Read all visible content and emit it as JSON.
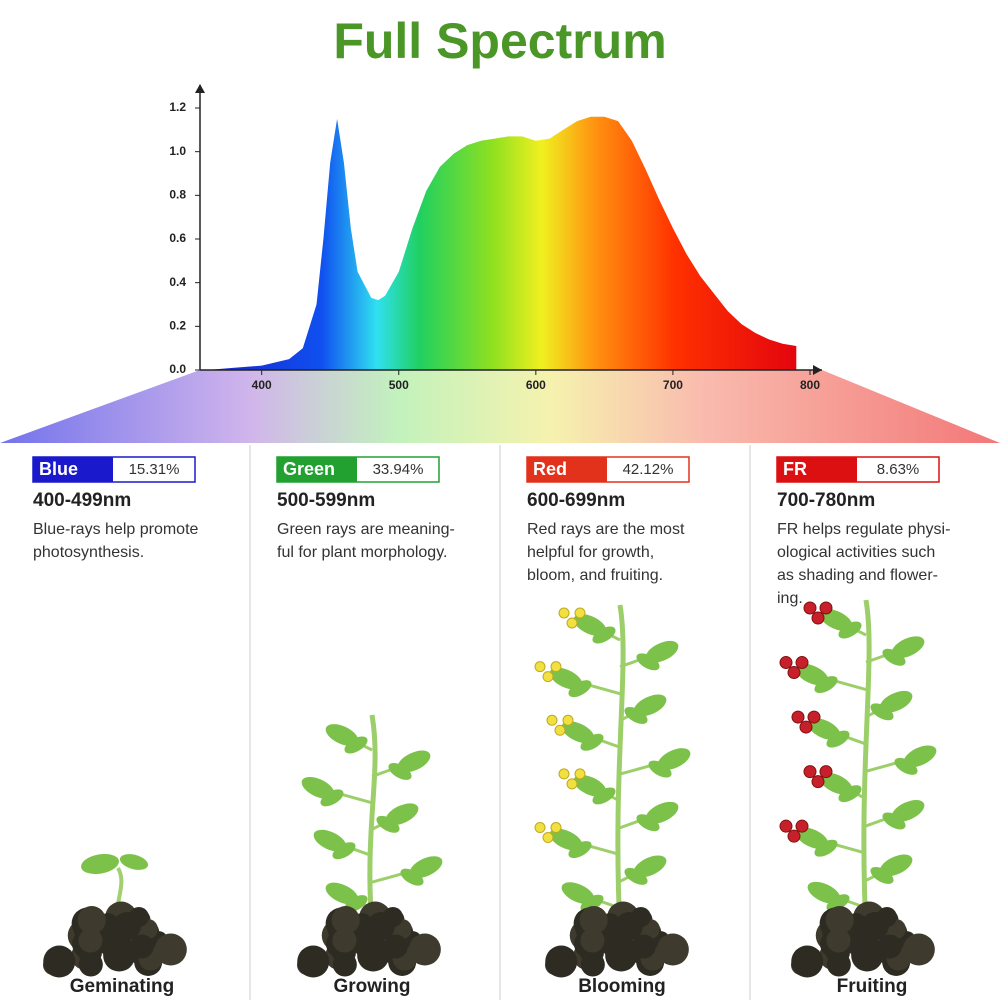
{
  "chart_data": {
    "type": "area",
    "title": "Full Spectrum",
    "x": [
      360,
      380,
      400,
      420,
      430,
      440,
      445,
      450,
      455,
      460,
      465,
      470,
      480,
      485,
      490,
      500,
      510,
      520,
      530,
      540,
      550,
      560,
      570,
      580,
      590,
      600,
      610,
      620,
      630,
      640,
      650,
      660,
      670,
      680,
      690,
      700,
      710,
      720,
      730,
      740,
      750,
      760,
      770,
      780,
      790
    ],
    "values": [
      0,
      0.01,
      0.02,
      0.05,
      0.1,
      0.3,
      0.6,
      0.95,
      1.15,
      0.95,
      0.65,
      0.45,
      0.33,
      0.32,
      0.34,
      0.45,
      0.65,
      0.82,
      0.93,
      0.99,
      1.03,
      1.05,
      1.06,
      1.07,
      1.07,
      1.05,
      1.06,
      1.1,
      1.14,
      1.16,
      1.16,
      1.14,
      1.05,
      0.92,
      0.78,
      0.65,
      0.53,
      0.43,
      0.35,
      0.27,
      0.21,
      0.17,
      0.14,
      0.12,
      0.11
    ],
    "xlim": [
      355,
      800
    ],
    "xticks": [
      400,
      500,
      600,
      700,
      800
    ],
    "ylim": [
      0,
      1.2
    ],
    "yticks": [
      {
        "value": 0,
        "label": "0.0"
      },
      0.2,
      0.4,
      0.6,
      0.8,
      {
        "value": 1,
        "label": "1.0"
      },
      1.2
    ]
  },
  "panels": [
    {
      "name": "Blue",
      "color": "#1a1acc",
      "percent": "15.31%",
      "range": "400-499nm",
      "description": [
        "Blue-rays help promote",
        "photosynthesis."
      ],
      "stage": "Geminating"
    },
    {
      "name": "Green",
      "color": "#22a030",
      "percent": "33.94%",
      "range": "500-599nm",
      "description": [
        "Green rays are meaning-",
        "ful for plant morphology."
      ],
      "stage": "Growing"
    },
    {
      "name": "Red",
      "color": "#e2321c",
      "percent": "42.12%",
      "range": "600-699nm",
      "description": [
        "Red rays are the most",
        "helpful for growth,",
        "bloom, and fruiting."
      ],
      "stage": "Blooming"
    },
    {
      "name": "FR",
      "color": "#dc1010",
      "percent": "8.63%",
      "range": "700-780nm",
      "description": [
        "FR helps regulate physi-",
        "ological activities such",
        "as shading and flower-",
        "ing."
      ],
      "stage": "Fruiting"
    }
  ]
}
